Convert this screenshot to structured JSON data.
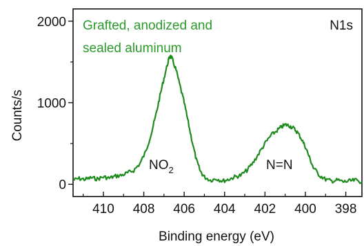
{
  "chart_data": {
    "type": "line",
    "title": "",
    "xlabel": "Binding energy (eV)",
    "ylabel": "Counts/s",
    "xlim": [
      411.5,
      397.2
    ],
    "ylim": [
      -150,
      2150
    ],
    "x_reversed": true,
    "x_ticks": [
      410,
      408,
      406,
      404,
      402,
      400,
      398
    ],
    "y_ticks": [
      0,
      1000,
      2000
    ],
    "grid": false,
    "legend": "none",
    "colors": {
      "line": "#1d8a1d",
      "annotation": "#2a9a2a",
      "axis": "#111111"
    },
    "annotations": {
      "sample_line1": "Grafted, anodized and",
      "sample_line2": "sealed aluminum",
      "region": "N1s",
      "peak1": "NO",
      "peak1_sub": "2",
      "peak2": "N=N"
    },
    "series": [
      {
        "x": [
          411.5,
          411.2,
          410.9,
          410.6,
          410.3,
          410.0,
          409.7,
          409.4,
          409.1,
          408.8,
          408.5,
          408.2,
          407.9,
          407.6,
          407.4,
          407.2,
          407.0,
          406.8,
          406.7,
          406.6,
          406.4,
          406.2,
          406.0,
          405.8,
          405.6,
          405.4,
          405.2,
          405.0,
          404.7,
          404.4,
          404.1,
          403.8,
          403.5,
          403.2,
          402.9,
          402.6,
          402.3,
          402.0,
          401.7,
          401.4,
          401.2,
          401.0,
          400.8,
          400.6,
          400.4,
          400.2,
          400.0,
          399.8,
          399.6,
          399.3,
          399.0,
          398.7,
          398.4,
          398.1,
          397.8,
          397.5,
          397.2
        ],
        "y": [
          50,
          70,
          60,
          80,
          65,
          90,
          75,
          100,
          110,
          140,
          170,
          250,
          400,
          650,
          850,
          1080,
          1300,
          1500,
          1580,
          1540,
          1400,
          1200,
          1000,
          760,
          520,
          300,
          160,
          90,
          50,
          70,
          40,
          60,
          90,
          110,
          170,
          260,
          380,
          500,
          600,
          660,
          700,
          730,
          720,
          690,
          640,
          560,
          460,
          330,
          200,
          110,
          60,
          40,
          50,
          30,
          40,
          50,
          30
        ]
      }
    ]
  }
}
